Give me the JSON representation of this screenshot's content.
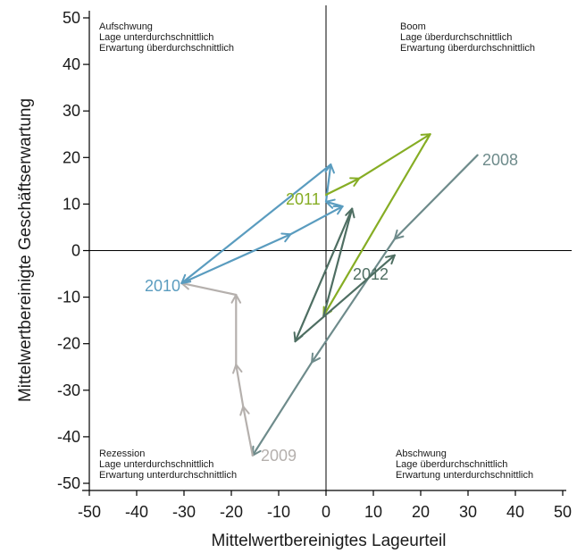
{
  "chart_data": {
    "type": "line",
    "title": "",
    "xlabel": "Mittelwertbereinigtes Lageurteil",
    "ylabel": "Mittelwertbereinigte Geschäftserwartung",
    "xlim": [
      -50,
      50
    ],
    "ylim": [
      -50,
      50
    ],
    "xticks": [
      "-50",
      "-40",
      "-30",
      "-20",
      "-10",
      "0",
      "10",
      "20",
      "30",
      "40",
      "50"
    ],
    "yticks": [
      "50",
      "40",
      "30",
      "20",
      "10",
      "0",
      "-10",
      "-20",
      "-30",
      "-40",
      "-50"
    ],
    "grid": false,
    "legend": "none",
    "quadrants": [
      {
        "id": "upper-left",
        "lines": [
          "Aufschwung",
          "Lage unterdurchschnittlich",
          "Erwartung überdurchschnittlich"
        ]
      },
      {
        "id": "upper-right",
        "lines": [
          "Boom",
          "Lage überdurchschnittlich",
          "Erwartung überdurchschnittlich"
        ]
      },
      {
        "id": "lower-left",
        "lines": [
          "Rezession",
          "Lage unterdurchschnittlich",
          "Erwartung unterdurchschnittlich"
        ]
      },
      {
        "id": "lower-right",
        "lines": [
          "Abschwung",
          "Lage überdurchschnittlich",
          "Erwartung unterdurchschnittlich"
        ]
      }
    ],
    "series": [
      {
        "label": "2008",
        "color": "#6e8b8b",
        "points": [
          [
            32,
            20.5
          ],
          [
            14.5,
            2.5
          ],
          [
            -3,
            -24
          ],
          [
            -15.5,
            -44
          ]
        ]
      },
      {
        "label": "2009",
        "color": "#b5b0ad",
        "points": [
          [
            -15.5,
            -44
          ],
          [
            -17.5,
            -33.5
          ],
          [
            -19,
            -24.5
          ],
          [
            -19,
            -9.5
          ],
          [
            -30.5,
            -7
          ]
        ]
      },
      {
        "label": "2010",
        "color": "#5a9cbf",
        "points": [
          [
            -30.5,
            -7
          ],
          [
            -7.5,
            3.5
          ],
          [
            3.5,
            9.5
          ],
          [
            0,
            10.5
          ],
          [
            1,
            18.5
          ],
          [
            -30.5,
            -7
          ]
        ]
      },
      {
        "label": "2011",
        "color": "#86ad24",
        "points": [
          [
            0,
            12
          ],
          [
            7,
            15.5
          ],
          [
            22,
            25
          ],
          [
            -0.5,
            -14
          ]
        ]
      },
      {
        "label": "2012",
        "color": "#4e6e62",
        "points": [
          [
            -0.5,
            -14
          ],
          [
            5.5,
            9
          ],
          [
            -6.5,
            -19.5
          ],
          [
            14.5,
            -1
          ]
        ]
      }
    ]
  }
}
